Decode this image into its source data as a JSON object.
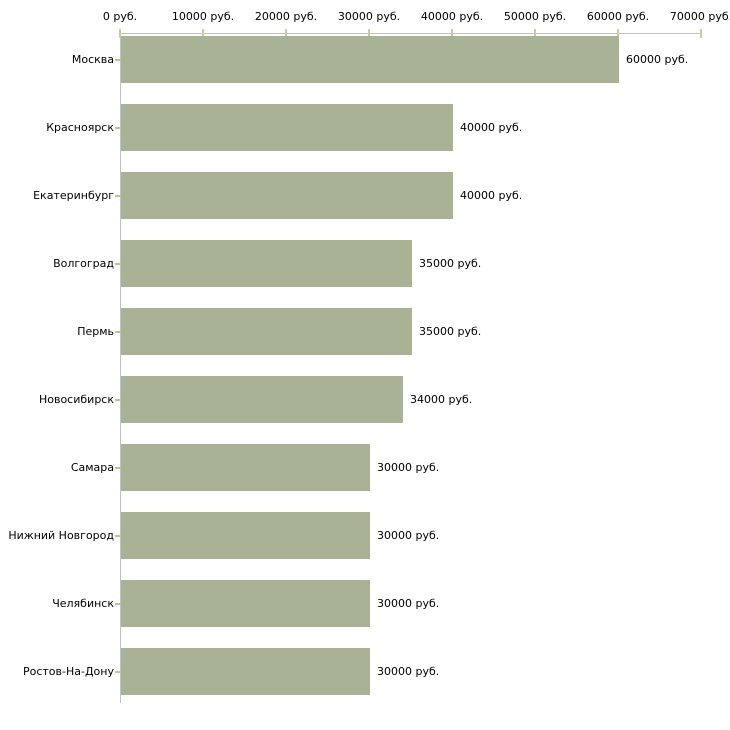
{
  "chart_data": {
    "type": "bar",
    "orientation": "horizontal",
    "title": "",
    "xlabel": "",
    "ylabel": "",
    "categories": [
      "Москва",
      "Красноярск",
      "Екатеринбург",
      "Волгоград",
      "Пермь",
      "Новосибирск",
      "Самара",
      "Нижний Новгород",
      "Челябинск",
      "Ростов-На-Дону"
    ],
    "values": [
      60000,
      40000,
      40000,
      35000,
      35000,
      34000,
      30000,
      30000,
      30000,
      30000
    ],
    "value_labels": [
      "60000 руб.",
      "40000 руб.",
      "40000 руб.",
      "35000 руб.",
      "35000 руб.",
      "34000 руб.",
      "30000 руб.",
      "30000 руб.",
      "30000 руб.",
      "30000 руб."
    ],
    "x_axis": {
      "position": "top",
      "range": [
        0,
        70000
      ],
      "ticks": [
        0,
        10000,
        20000,
        30000,
        40000,
        50000,
        60000,
        70000
      ],
      "tick_labels": [
        "0 руб.",
        "10000 руб.",
        "20000 руб.",
        "30000 руб.",
        "40000 руб.",
        "50000 руб.",
        "60000 руб.",
        "70000 руб."
      ]
    },
    "grid": false,
    "legend": false,
    "colors": {
      "bar": "#aab296",
      "axis_line": "#c1c1c1",
      "x_tick": "#cccc99",
      "y_tick": "#c2c28f",
      "text": "#000000",
      "background": "#ffffff"
    }
  }
}
